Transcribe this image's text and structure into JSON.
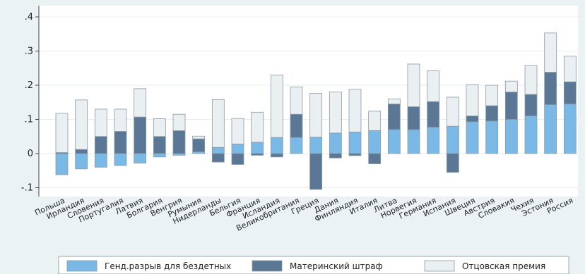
{
  "chart_data": {
    "type": "bar",
    "stacked": true,
    "title": "",
    "xlabel": "",
    "ylabel": "",
    "ylim": [
      -0.12,
      0.42
    ],
    "yticks": [
      {
        "value": 0.4,
        "label": ".4"
      },
      {
        "value": 0.3,
        "label": ".3"
      },
      {
        "value": 0.2,
        "label": ".2"
      },
      {
        "value": 0.1,
        "label": ".1"
      },
      {
        "value": 0.0,
        "label": "0"
      },
      {
        "value": -0.1,
        "label": "-.1"
      }
    ],
    "grid": "horizontal",
    "legend_position": "bottom",
    "highlight_category": "Россия",
    "highlight_color": "#ff0000",
    "categories": [
      "Польша",
      "Ирландия",
      "Словения",
      "Португалия",
      "Латвия",
      "Болгария",
      "Венгрия",
      "Румыния",
      "Нидерланды",
      "Бельгия",
      "Франция",
      "Исландия",
      "Великобритания",
      "Греция",
      "Дания",
      "Финляндия",
      "Италия",
      "Литва",
      "Норвегия",
      "Германия",
      "Испания",
      "Швеция",
      "Австрия",
      "Словакия",
      "Чехия",
      "Эстония",
      "Россия"
    ],
    "series": [
      {
        "name": "Генд.разрыв для бездетных",
        "color": "#7ab8e6",
        "values": [
          -0.062,
          -0.045,
          -0.04,
          -0.035,
          -0.028,
          -0.01,
          -0.005,
          0.005,
          0.018,
          0.028,
          0.033,
          0.047,
          0.047,
          0.048,
          0.06,
          0.063,
          0.067,
          0.07,
          0.07,
          0.077,
          0.08,
          0.093,
          0.095,
          0.1,
          0.11,
          0.143,
          0.145
        ]
      },
      {
        "name": "Материнский штраф",
        "color": "#5a7896",
        "values": [
          0.003,
          0.012,
          0.05,
          0.065,
          0.107,
          0.05,
          0.067,
          0.038,
          -0.025,
          -0.032,
          -0.005,
          -0.01,
          0.068,
          -0.105,
          -0.013,
          -0.006,
          -0.03,
          0.075,
          0.067,
          0.075,
          -0.055,
          0.017,
          0.045,
          0.08,
          0.063,
          0.095,
          0.065
        ]
      },
      {
        "name": "Отцовская премия",
        "color": "#eaeff2",
        "values": [
          0.115,
          0.145,
          0.08,
          0.065,
          0.083,
          0.052,
          0.048,
          0.008,
          0.14,
          0.075,
          0.088,
          0.183,
          0.08,
          0.128,
          0.12,
          0.125,
          0.057,
          0.015,
          0.125,
          0.09,
          0.085,
          0.092,
          0.06,
          0.032,
          0.085,
          0.115,
          0.075
        ]
      }
    ]
  }
}
